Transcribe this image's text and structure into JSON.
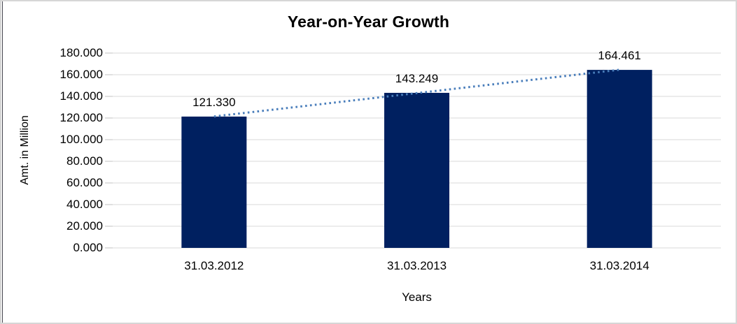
{
  "window": {
    "background": "#ffffff",
    "frame_border_color": "#d6d6d6",
    "left_edge_line_color": "#45454f"
  },
  "chart_data": {
    "type": "bar",
    "title": "Year-on-Year Growth",
    "xlabel": "Years",
    "ylabel": "Amt. in Million",
    "categories": [
      "31.03.2012",
      "31.03.2013",
      "31.03.2014"
    ],
    "values": [
      121.33,
      143.249,
      164.461
    ],
    "data_labels": [
      "121.330",
      "143.249",
      "164.461"
    ],
    "ylim": [
      0,
      180
    ],
    "ytick_step": 20,
    "ytick_labels": [
      "0.000",
      "20.000",
      "40.000",
      "60.000",
      "80.000",
      "100.000",
      "120.000",
      "140.000",
      "160.000",
      "180.000"
    ],
    "grid": true,
    "legend_position": "none",
    "bar_color": "#002060",
    "gridline_color": "#d9d9d9",
    "tick_color": "#c0c0c0",
    "text_color": "#000000",
    "trendline": {
      "fit": "linear",
      "style": "dotted",
      "color": "#4a7ebb"
    }
  }
}
